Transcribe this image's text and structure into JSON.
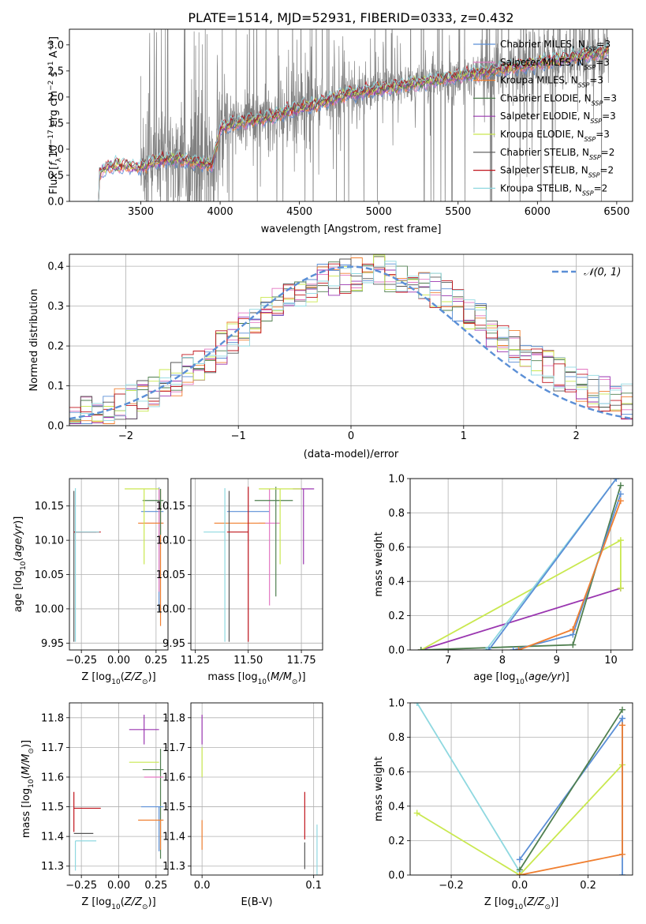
{
  "figure": {
    "title": "PLATE=1514, MJD=52931, FIBERID=0333, z=0.432"
  },
  "series_colors": {
    "Chabrier MILES": "#5b8fd6",
    "Salpeter MILES": "#e377c2",
    "Kroupa MILES": "#f07f30",
    "Chabrier ELODIE": "#4f7f4f",
    "Salpeter ELODIE": "#9a36b0",
    "Kroupa ELODIE": "#c9e84f",
    "Chabrier STELIB": "#555555",
    "Salpeter STELIB": "#c0141c",
    "Kroupa STELIB": "#8fd8e0",
    "data": "#808080"
  },
  "chart_data": [
    {
      "id": "spectrum",
      "type": "line",
      "xlabel": "wavelength [Angstrom, rest frame]",
      "ylabel": "Flux [fλ10⁻¹⁷ erg cm⁻² s⁻¹ A⁻¹]",
      "xlim": [
        3050,
        6600
      ],
      "ylim": [
        0,
        3.3
      ],
      "xticks": [
        "3500",
        "4000",
        "4500",
        "5000",
        "5500",
        "6000",
        "6500"
      ],
      "yticks": [
        "0.0",
        "0.5",
        "1.0",
        "1.5",
        "2.0",
        "2.5",
        "3.0"
      ],
      "legend_position": "upper right",
      "legend": [
        {
          "label": "Chabrier MILES, N",
          "sub": "SSP",
          "tail": "=3",
          "color": "#5b8fd6"
        },
        {
          "label": "Salpeter MILES, N",
          "sub": "SSP",
          "tail": "=3",
          "color": "#e377c2"
        },
        {
          "label": "Kroupa MILES, N",
          "sub": "SSP",
          "tail": "=3",
          "color": "#f07f30"
        },
        {
          "label": "Chabrier ELODIE, N",
          "sub": "SSP",
          "tail": "=3",
          "color": "#4f7f4f"
        },
        {
          "label": "Salpeter ELODIE, N",
          "sub": "SSP",
          "tail": "=3",
          "color": "#9a36b0"
        },
        {
          "label": "Kroupa ELODIE, N",
          "sub": "SSP",
          "tail": "=3",
          "color": "#c9e84f"
        },
        {
          "label": "Chabrier STELIB, N",
          "sub": "SSP",
          "tail": "=2",
          "color": "#555555"
        },
        {
          "label": "Salpeter STELIB, N",
          "sub": "SSP",
          "tail": "=2",
          "color": "#c0141c"
        },
        {
          "label": "Kroupa STELIB, N",
          "sub": "SSP",
          "tail": "=2",
          "color": "#8fd8e0"
        }
      ],
      "model_continuum": {
        "x": [
          3210,
          3240,
          3260,
          3300,
          3350,
          3400,
          3450,
          3500,
          3550,
          3600,
          3650,
          3700,
          3750,
          3800,
          3850,
          3900,
          3950,
          4000,
          4050,
          4100,
          4200,
          4300,
          4400,
          4500,
          4600,
          4700,
          4800,
          4900,
          5000,
          5100,
          5200,
          5300,
          5400,
          5500,
          5600,
          5700,
          5800,
          5900,
          6000,
          6100,
          6200,
          6300,
          6400,
          6450
        ],
        "y": [
          0.0,
          0.5,
          0.6,
          0.66,
          0.68,
          0.68,
          0.66,
          0.65,
          0.72,
          0.78,
          0.8,
          0.82,
          0.8,
          0.78,
          0.75,
          0.72,
          0.68,
          1.4,
          1.45,
          1.5,
          1.55,
          1.6,
          1.7,
          1.8,
          1.85,
          1.95,
          2.05,
          2.1,
          2.15,
          2.2,
          2.25,
          2.3,
          2.35,
          2.4,
          2.45,
          2.5,
          2.55,
          2.6,
          2.65,
          2.7,
          2.75,
          2.8,
          2.85,
          2.9
        ]
      },
      "data_spectrum": {
        "x_range": [
          3500,
          6450
        ],
        "noise_level": 0.9
      }
    },
    {
      "id": "residuals",
      "type": "histogram",
      "xlabel": "(data-model)/error",
      "ylabel": "Normed distribution",
      "xlim": [
        -2.5,
        2.5
      ],
      "ylim": [
        0,
        0.43
      ],
      "xticks": [
        "−2",
        "−1",
        "0",
        "1",
        "2"
      ],
      "yticks": [
        "0.0",
        "0.1",
        "0.2",
        "0.3",
        "0.4"
      ],
      "bin_width": 0.1,
      "legend": [
        {
          "label": "𝒩(0, 1)",
          "color": "#5b8fd6",
          "style": "dashed"
        }
      ],
      "reference_curve": "normal(0,1)"
    },
    {
      "id": "age_vs_Z",
      "type": "errorbar",
      "xlabel": "Z [log10(Z/Z⊙)]",
      "ylabel": "age  [log10(age/yr)]",
      "xlim": [
        -0.33,
        0.33
      ],
      "ylim": [
        9.94,
        10.19
      ],
      "xticks": [
        "−0.25",
        "0.00",
        "0.25"
      ],
      "yticks": [
        "9.95",
        "10.00",
        "10.05",
        "10.10",
        "10.15"
      ],
      "points": [
        {
          "series": "Chabrier MILES",
          "x": 0.27,
          "y": 10.142,
          "xerr": [
            0.12,
            0.03
          ],
          "yerr": [
            0.145,
            0.035
          ]
        },
        {
          "series": "Salpeter MILES",
          "x": 0.27,
          "y": 10.125,
          "xerr": [
            0.1,
            0.03
          ],
          "yerr": [
            0.1,
            0.05
          ]
        },
        {
          "series": "Kroupa MILES",
          "x": 0.28,
          "y": 10.125,
          "xerr": [
            0.15,
            0.02
          ],
          "yerr": [
            0.15,
            0.05
          ]
        },
        {
          "series": "Chabrier ELODIE",
          "x": 0.28,
          "y": 10.158,
          "xerr": [
            0.12,
            0.02
          ],
          "yerr": [
            0.05,
            0.017
          ]
        },
        {
          "series": "Kroupa ELODIE",
          "x": 0.17,
          "y": 10.175,
          "xerr": [
            0.13,
            0.1
          ],
          "yerr": [
            0.11,
            0.0
          ]
        },
        {
          "series": "Chabrier STELIB",
          "x": -0.3,
          "y": 10.112,
          "xerr": [
            0.0,
            0.15
          ],
          "yerr": [
            0.16,
            0.06
          ]
        },
        {
          "series": "Salpeter STELIB",
          "x": -0.3,
          "y": 10.112,
          "xerr": [
            0.0,
            0.18
          ],
          "yerr": [
            0.0,
            0.0
          ]
        },
        {
          "series": "Kroupa STELIB",
          "x": -0.29,
          "y": 10.112,
          "xerr": [
            0.0,
            0.16
          ],
          "yerr": [
            0.16,
            0.064
          ]
        }
      ]
    },
    {
      "id": "age_vs_mass",
      "type": "errorbar",
      "xlabel": "mass [log10(M/M⊙)]",
      "ylabel": "",
      "xlim": [
        11.23,
        11.85
      ],
      "ylim": [
        9.94,
        10.19
      ],
      "xticks": [
        "11.25",
        "11.50",
        "11.75"
      ],
      "yticks": [
        "9.95",
        "10.00",
        "10.05",
        "10.10",
        "10.15"
      ],
      "points": [
        {
          "series": "Chabrier MILES",
          "x": 11.5,
          "y": 10.142,
          "xerr": [
            0.1,
            0.1
          ],
          "yerr": [
            0.0,
            0.0
          ]
        },
        {
          "series": "Salpeter MILES",
          "x": 11.6,
          "y": 10.125,
          "xerr": [
            0.05,
            0.05
          ],
          "yerr": [
            0.12,
            0.05
          ]
        },
        {
          "series": "Kroupa MILES",
          "x": 11.46,
          "y": 10.125,
          "xerr": [
            0.12,
            0.12
          ],
          "yerr": [
            0.0,
            0.0
          ]
        },
        {
          "series": "Chabrier ELODIE",
          "x": 11.63,
          "y": 10.158,
          "xerr": [
            0.1,
            0.08
          ],
          "yerr": [
            0.14,
            0.02
          ]
        },
        {
          "series": "Salpeter ELODIE",
          "x": 11.76,
          "y": 10.175,
          "xerr": [
            0.05,
            0.05
          ],
          "yerr": [
            0.11,
            0.0
          ]
        },
        {
          "series": "Kroupa ELODIE",
          "x": 11.65,
          "y": 10.175,
          "xerr": [
            0.1,
            0.1
          ],
          "yerr": [
            0.11,
            0.0
          ]
        },
        {
          "series": "Chabrier STELIB",
          "x": 11.41,
          "y": 10.112,
          "xerr": [
            0.0,
            0.0
          ],
          "yerr": [
            0.16,
            0.06
          ]
        },
        {
          "series": "Salpeter STELIB",
          "x": 11.5,
          "y": 10.112,
          "xerr": [
            0.1,
            0.0
          ],
          "yerr": [
            0.16,
            0.066
          ]
        },
        {
          "series": "Kroupa STELIB",
          "x": 11.39,
          "y": 10.112,
          "xerr": [
            0.1,
            0.0
          ],
          "yerr": [
            0.16,
            0.064
          ]
        }
      ]
    },
    {
      "id": "weight_vs_age",
      "type": "line",
      "xlabel": "age  [log10(age/yr)]",
      "ylabel": "mass weight",
      "xlim": [
        6.3,
        10.4
      ],
      "ylim": [
        0,
        1.0
      ],
      "xticks": [
        "7",
        "8",
        "9",
        "10"
      ],
      "yticks": [
        "0.0",
        "0.2",
        "0.4",
        "0.6",
        "0.8",
        "1.0"
      ],
      "series": [
        {
          "name": "Salpeter ELODIE",
          "x": [
            6.5,
            10.18
          ],
          "y": [
            0.0,
            0.36
          ],
          "color": "#9a36b0"
        },
        {
          "name": "Kroupa ELODIE",
          "x": [
            6.5,
            10.18,
            10.18
          ],
          "y": [
            0.0,
            0.64,
            0.36
          ],
          "color": "#c9e84f"
        },
        {
          "name": "Chabrier ELODIE",
          "x": [
            6.5,
            9.3,
            10.18
          ],
          "y": [
            0.0,
            0.03,
            0.96
          ],
          "color": "#4f7f4f"
        },
        {
          "name": "Chabrier MILES",
          "x": [
            8.2,
            9.3,
            10.18
          ],
          "y": [
            0.0,
            0.09,
            0.91
          ],
          "color": "#5b8fd6"
        },
        {
          "name": "Kroupa MILES",
          "x": [
            8.3,
            9.3,
            10.18
          ],
          "y": [
            0.0,
            0.12,
            0.87
          ],
          "color": "#f07f30"
        },
        {
          "name": "Kroupa STELIB",
          "x": [
            7.7,
            10.1
          ],
          "y": [
            0.0,
            1.0
          ],
          "color": "#8fd8e0"
        },
        {
          "name": "Chabrier STELIB",
          "x": [
            7.75,
            10.1
          ],
          "y": [
            0.0,
            1.0
          ],
          "color": "#5b8fd6"
        }
      ]
    },
    {
      "id": "mass_vs_Z",
      "type": "errorbar",
      "xlabel": "Z [log10(Z/Z⊙)]",
      "ylabel": "mass [log10(M/M⊙)]",
      "xlim": [
        -0.33,
        0.33
      ],
      "ylim": [
        11.27,
        11.85
      ],
      "xticks": [
        "−0.25",
        "0.00",
        "0.25"
      ],
      "yticks": [
        "11.3",
        "11.4",
        "11.5",
        "11.6",
        "11.7",
        "11.8"
      ],
      "points": [
        {
          "series": "Salpeter ELODIE",
          "x": 0.17,
          "y": 11.76,
          "xerr": [
            0.1,
            0.1
          ],
          "yerr": [
            0.05,
            0.05
          ]
        },
        {
          "series": "Kroupa ELODIE",
          "x": 0.17,
          "y": 11.65,
          "xerr": [
            0.1,
            0.1
          ],
          "yerr": [
            0.0,
            0.0
          ]
        },
        {
          "series": "Chabrier ELODIE",
          "x": 0.28,
          "y": 11.625,
          "xerr": [
            0.12,
            0.02
          ],
          "yerr": [
            0.3,
            0.07
          ]
        },
        {
          "series": "Salpeter MILES",
          "x": 0.27,
          "y": 11.6,
          "xerr": [
            0.1,
            0.03
          ],
          "yerr": [
            0.0,
            0.0
          ]
        },
        {
          "series": "Chabrier MILES",
          "x": 0.27,
          "y": 11.5,
          "xerr": [
            0.12,
            0.03
          ],
          "yerr": [
            0.15,
            0.0
          ]
        },
        {
          "series": "Kroupa MILES",
          "x": 0.28,
          "y": 11.455,
          "xerr": [
            0.15,
            0.02
          ],
          "yerr": [
            0.1,
            0.0
          ]
        },
        {
          "series": "Salpeter STELIB",
          "x": -0.3,
          "y": 11.495,
          "xerr": [
            0.0,
            0.18
          ],
          "yerr": [
            0.08,
            0.055
          ]
        },
        {
          "series": "Chabrier STELIB",
          "x": -0.3,
          "y": 11.41,
          "xerr": [
            0.0,
            0.13
          ],
          "yerr": [
            0.0,
            0.0
          ]
        },
        {
          "series": "Kroupa STELIB",
          "x": -0.29,
          "y": 11.385,
          "xerr": [
            0.0,
            0.14
          ],
          "yerr": [
            0.1,
            0.0
          ]
        }
      ]
    },
    {
      "id": "mass_vs_ebv",
      "type": "errorbar",
      "xlabel": "E(B-V)",
      "ylabel": "",
      "xlim": [
        -0.01,
        0.108
      ],
      "ylim": [
        11.27,
        11.85
      ],
      "xticks": [
        "0.0",
        "0.1"
      ],
      "yticks": [
        "11.3",
        "11.4",
        "11.5",
        "11.6",
        "11.7",
        "11.8"
      ],
      "points": [
        {
          "series": "Salpeter ELODIE",
          "x": 0.0,
          "y": 11.76,
          "xerr": [
            0.0,
            0.0
          ],
          "yerr": [
            0.05,
            0.05
          ]
        },
        {
          "series": "Kroupa ELODIE",
          "x": 0.0,
          "y": 11.65,
          "xerr": [
            0.0,
            0.0
          ],
          "yerr": [
            0.05,
            0.05
          ]
        },
        {
          "series": "Kroupa MILES",
          "x": 0.0,
          "y": 11.455,
          "xerr": [
            0.0,
            0.0
          ],
          "yerr": [
            0.1,
            0.0
          ]
        },
        {
          "series": "Salpeter STELIB",
          "x": 0.092,
          "y": 11.47,
          "xerr": [
            0.0,
            0.0
          ],
          "yerr": [
            0.08,
            0.08
          ]
        },
        {
          "series": "Chabrier STELIB",
          "x": 0.092,
          "y": 11.35,
          "xerr": [
            0.0,
            0.0
          ],
          "yerr": [
            0.06,
            0.03
          ]
        },
        {
          "series": "Kroupa STELIB",
          "x": 0.103,
          "y": 11.35,
          "xerr": [
            0.0,
            0.0
          ],
          "yerr": [
            0.08,
            0.09
          ]
        }
      ]
    },
    {
      "id": "weight_vs_Z",
      "type": "line",
      "xlabel": "Z [log10(Z/Z⊙)]",
      "ylabel": "mass weight",
      "xlim": [
        -0.32,
        0.33
      ],
      "ylim": [
        0,
        1.0
      ],
      "xticks": [
        "−0.2",
        "0.0",
        "0.2"
      ],
      "yticks": [
        "0.0",
        "0.2",
        "0.4",
        "0.6",
        "0.8",
        "1.0"
      ],
      "series": [
        {
          "name": "Kroupa STELIB",
          "x": [
            -0.3,
            0.0
          ],
          "y": [
            1.0,
            0.02
          ],
          "color": "#8fd8e0"
        },
        {
          "name": "Kroupa ELODIE",
          "x": [
            -0.3,
            0.0,
            0.3
          ],
          "y": [
            0.36,
            0.0,
            0.64
          ],
          "color": "#c9e84f"
        },
        {
          "name": "Chabrier MILES",
          "x": [
            0.0,
            0.3,
            0.3
          ],
          "y": [
            0.09,
            0.91,
            0.0
          ],
          "color": "#5b8fd6"
        },
        {
          "name": "Chabrier ELODIE",
          "x": [
            0.0,
            0.3
          ],
          "y": [
            0.03,
            0.96
          ],
          "color": "#4f7f4f"
        },
        {
          "name": "Kroupa MILES",
          "x": [
            0.0,
            0.3,
            0.3
          ],
          "y": [
            0.0,
            0.12,
            0.87
          ],
          "color": "#f07f30"
        }
      ]
    }
  ]
}
